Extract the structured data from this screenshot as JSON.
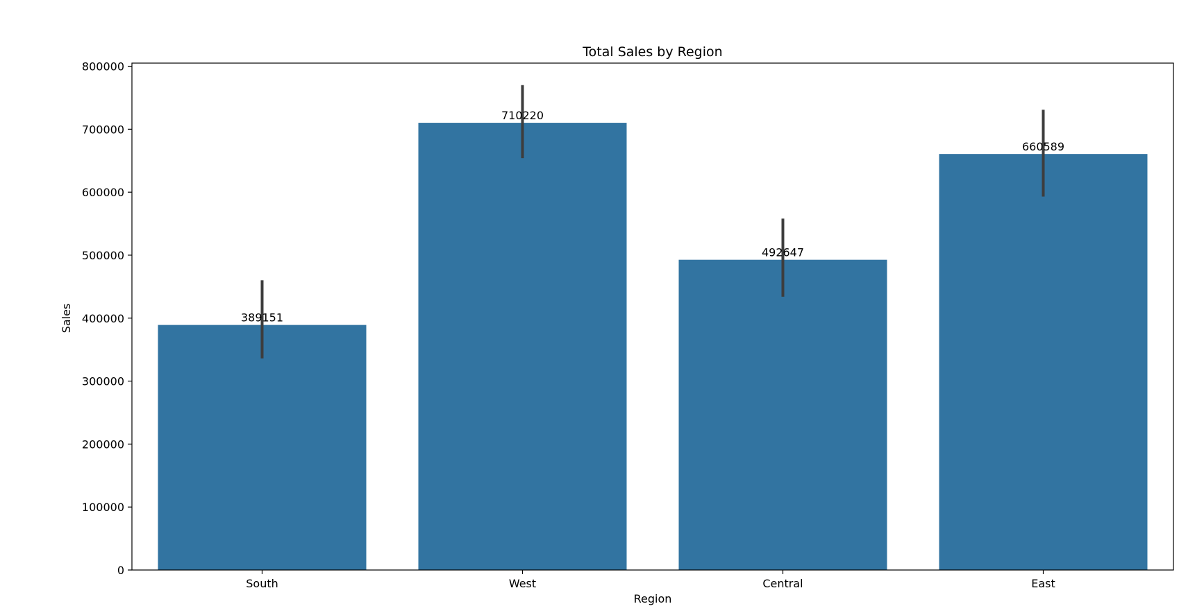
{
  "chart_data": {
    "type": "bar",
    "title": "Total Sales by Region",
    "xlabel": "Region",
    "ylabel": "Sales",
    "categories": [
      "South",
      "West",
      "Central",
      "East"
    ],
    "values": [
      389151,
      710220,
      492647,
      660589
    ],
    "value_labels": [
      "389151",
      "710220",
      "492647",
      "660589"
    ],
    "error_bars": [
      [
        336000,
        460000
      ],
      [
        654000,
        770000
      ],
      [
        434000,
        558000
      ],
      [
        593000,
        731000
      ]
    ],
    "ylim": [
      0,
      805000
    ],
    "yticks": [
      0,
      100000,
      200000,
      300000,
      400000,
      500000,
      600000,
      700000,
      800000
    ],
    "ytick_labels": [
      "0",
      "100000",
      "200000",
      "300000",
      "400000",
      "500000",
      "600000",
      "700000",
      "800000"
    ],
    "grid": false,
    "bar_color": "#3274a1",
    "error_bar_color": "#3d3d3d"
  }
}
